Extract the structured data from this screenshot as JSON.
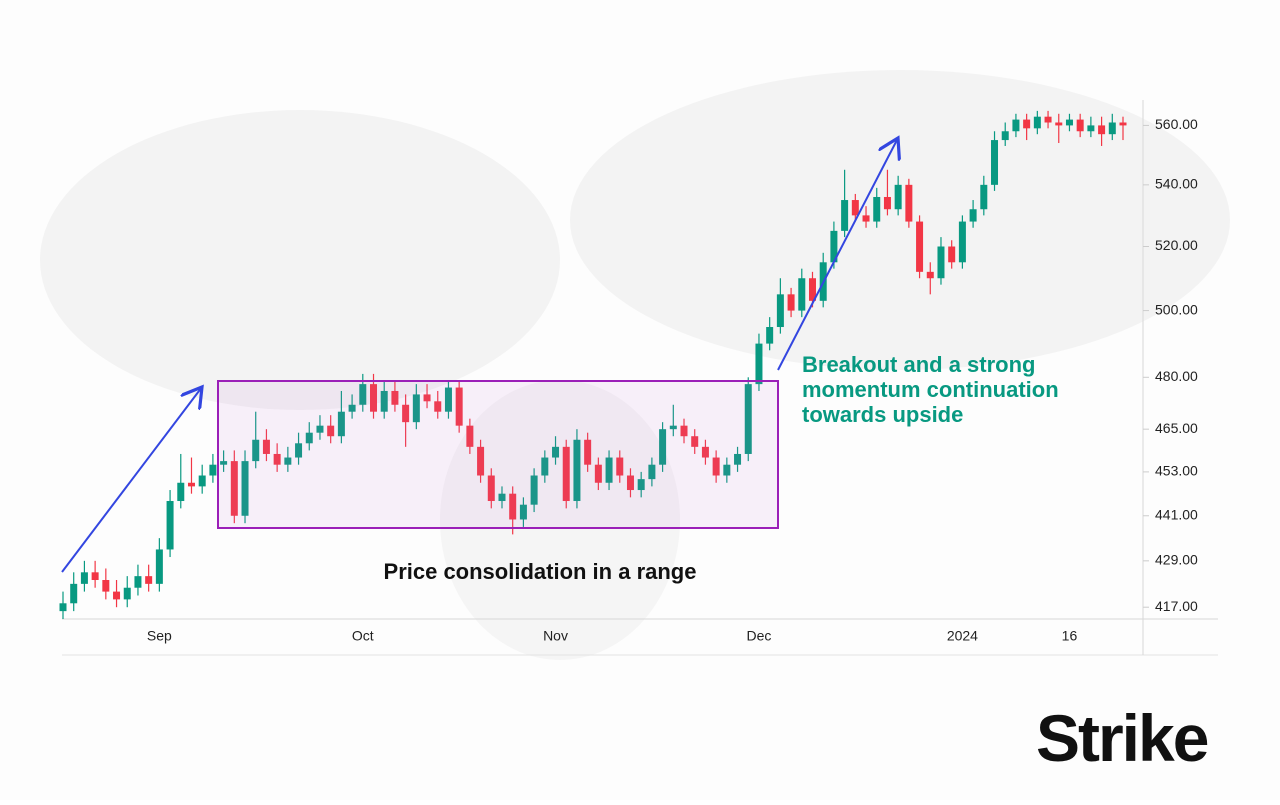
{
  "chart_data": {
    "type": "candlestick",
    "log_scale": true,
    "up_color": "#089981",
    "down_color": "#f23645",
    "ylim": [
      414,
      566
    ],
    "yticks": [
      {
        "value": 417,
        "label": "417.00"
      },
      {
        "value": 429,
        "label": "429.00"
      },
      {
        "value": 441,
        "label": "441.00"
      },
      {
        "value": 453,
        "label": "453.00"
      },
      {
        "value": 465,
        "label": "465.00"
      },
      {
        "value": 480,
        "label": "480.00"
      },
      {
        "value": 500,
        "label": "500.00"
      },
      {
        "value": 520,
        "label": "520.00"
      },
      {
        "value": 540,
        "label": "540.00"
      },
      {
        "value": 560,
        "label": "560.00"
      }
    ],
    "categories": [
      null,
      null,
      null,
      null,
      null,
      null,
      null,
      null,
      null,
      "Sep",
      null,
      null,
      null,
      null,
      null,
      null,
      null,
      null,
      null,
      null,
      null,
      null,
      null,
      null,
      null,
      null,
      null,
      null,
      "Oct",
      null,
      null,
      null,
      null,
      null,
      null,
      null,
      null,
      null,
      null,
      null,
      null,
      null,
      null,
      null,
      null,
      null,
      "Nov",
      null,
      null,
      null,
      null,
      null,
      null,
      null,
      null,
      null,
      null,
      null,
      null,
      null,
      null,
      null,
      null,
      null,
      null,
      "Dec",
      null,
      null,
      null,
      null,
      null,
      null,
      null,
      null,
      null,
      null,
      null,
      null,
      null,
      null,
      null,
      null,
      null,
      null,
      "2024",
      null,
      null,
      null,
      null,
      null,
      null,
      null,
      null,
      null,
      "16",
      null,
      null,
      null,
      null,
      null
    ],
    "open": [
      416,
      418,
      423,
      426,
      424,
      421,
      419,
      422,
      425,
      423,
      432,
      445,
      450,
      449,
      452,
      455,
      456,
      441,
      456,
      462,
      458,
      455,
      457,
      461,
      464,
      466,
      463,
      470,
      472,
      478,
      470,
      476,
      472,
      467,
      475,
      473,
      470,
      477,
      466,
      460,
      452,
      445,
      447,
      440,
      444,
      452,
      457,
      460,
      445,
      462,
      455,
      450,
      457,
      452,
      448,
      451,
      455,
      465,
      466,
      463,
      460,
      457,
      452,
      455,
      458,
      478,
      490,
      495,
      505,
      500,
      510,
      503,
      515,
      525,
      535,
      530,
      528,
      536,
      532,
      540,
      528,
      512,
      510,
      520,
      515,
      528,
      532,
      540,
      555,
      558,
      562,
      559,
      563,
      561,
      560,
      562,
      558,
      560,
      557,
      561
    ],
    "high": [
      421,
      426,
      429,
      429,
      427,
      424,
      425,
      428,
      428,
      435,
      448,
      458,
      457,
      455,
      458,
      459,
      459,
      459,
      470,
      465,
      461,
      460,
      464,
      467,
      469,
      469,
      476,
      475,
      481,
      481,
      479,
      479,
      475,
      478,
      478,
      476,
      479,
      479,
      468,
      462,
      454,
      449,
      449,
      446,
      454,
      459,
      463,
      462,
      465,
      464,
      457,
      459,
      459,
      454,
      453,
      457,
      467,
      472,
      468,
      465,
      462,
      459,
      457,
      460,
      480,
      493,
      498,
      510,
      507,
      513,
      512,
      518,
      528,
      545,
      537,
      533,
      539,
      545,
      543,
      542,
      530,
      515,
      523,
      522,
      530,
      535,
      543,
      558,
      561,
      564,
      564,
      565,
      565,
      564,
      564,
      564,
      563,
      563,
      564,
      563
    ],
    "low": [
      414,
      416,
      421,
      422,
      419,
      417,
      417,
      420,
      421,
      421,
      430,
      443,
      447,
      447,
      450,
      453,
      439,
      439,
      454,
      456,
      453,
      453,
      455,
      459,
      462,
      461,
      461,
      468,
      470,
      468,
      468,
      470,
      460,
      465,
      471,
      468,
      468,
      464,
      458,
      450,
      443,
      443,
      436,
      438,
      442,
      450,
      455,
      443,
      443,
      453,
      448,
      448,
      450,
      446,
      446,
      449,
      453,
      463,
      461,
      458,
      455,
      450,
      450,
      453,
      456,
      476,
      488,
      493,
      498,
      498,
      501,
      501,
      513,
      523,
      528,
      526,
      526,
      530,
      530,
      526,
      510,
      505,
      508,
      513,
      513,
      526,
      530,
      538,
      553,
      556,
      555,
      557,
      559,
      554,
      558,
      556,
      556,
      553,
      555,
      555
    ],
    "close": [
      418,
      423,
      426,
      424,
      421,
      419,
      422,
      425,
      423,
      432,
      445,
      450,
      449,
      452,
      455,
      456,
      441,
      456,
      462,
      458,
      455,
      457,
      461,
      464,
      466,
      463,
      470,
      472,
      478,
      470,
      476,
      472,
      467,
      475,
      473,
      470,
      477,
      466,
      460,
      452,
      445,
      447,
      440,
      444,
      452,
      457,
      460,
      445,
      462,
      455,
      450,
      457,
      452,
      448,
      451,
      455,
      465,
      466,
      463,
      460,
      457,
      452,
      455,
      458,
      478,
      490,
      495,
      505,
      500,
      510,
      503,
      515,
      525,
      535,
      530,
      528,
      536,
      532,
      540,
      528,
      512,
      510,
      520,
      515,
      528,
      532,
      540,
      555,
      558,
      562,
      559,
      563,
      561,
      560,
      562,
      558,
      560,
      557,
      561,
      560
    ],
    "annotations": [
      "Price consolidation in a range",
      "Breakout and a strong momentum continuation towards upside"
    ],
    "logo": "Strike"
  }
}
